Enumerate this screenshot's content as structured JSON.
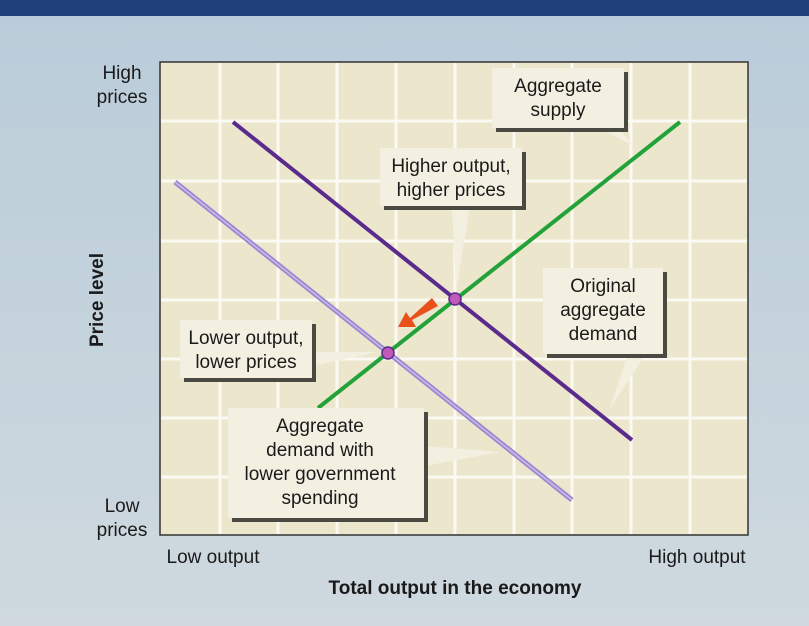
{
  "axes": {
    "y_title": "Price level",
    "x_title": "Total output in the economy",
    "y_top": [
      "High",
      "prices"
    ],
    "y_bottom": [
      "Low",
      "prices"
    ],
    "x_left": "Low output",
    "x_right": "High output"
  },
  "callouts": [
    {
      "lines": [
        "Aggregate",
        "supply"
      ]
    },
    {
      "lines": [
        "Higher output,",
        "higher prices"
      ]
    },
    {
      "lines": [
        "Original",
        "aggregate",
        "demand"
      ]
    },
    {
      "lines": [
        "Lower output,",
        "lower prices"
      ]
    },
    {
      "lines": [
        "Aggregate",
        "demand with",
        "lower government",
        "spending"
      ]
    }
  ]
}
